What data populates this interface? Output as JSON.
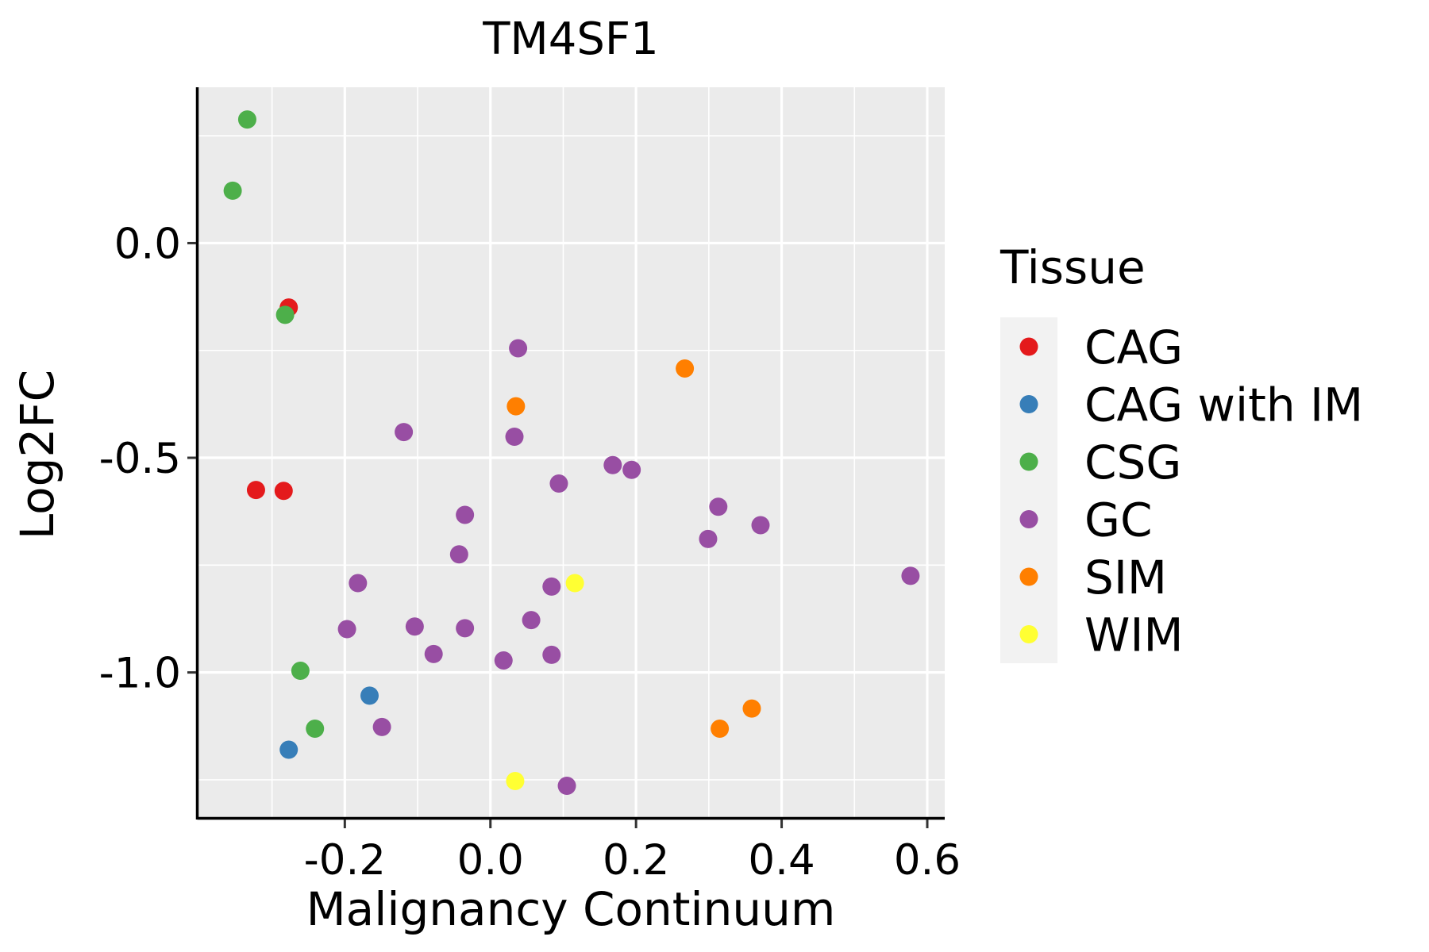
{
  "chart_data": {
    "type": "scatter",
    "title": "TM4SF1",
    "xlabel": "Malignancy Continuum",
    "ylabel": "Log2FC",
    "xlim": [
      -0.401,
      0.624
    ],
    "ylim": [
      -1.337,
      0.363
    ],
    "x_ticks": [
      -0.2,
      0.0,
      0.2,
      0.4,
      0.6
    ],
    "x_tick_labels": [
      "-0.2",
      "0.0",
      "0.2",
      "0.4",
      "0.6"
    ],
    "x_minor": [
      -0.3,
      -0.1,
      0.1,
      0.3,
      0.5
    ],
    "y_ticks": [
      0.0,
      -0.5,
      -1.0
    ],
    "y_tick_labels": [
      "0.0",
      "-0.5",
      "-1.0"
    ],
    "y_minor": [
      0.25,
      -0.25,
      -0.75,
      -1.25
    ],
    "grid": true,
    "legend": {
      "title": "Tissue",
      "position": "right"
    },
    "series": [
      {
        "name": "CAG",
        "color": "#E41A1C",
        "points": [
          [
            -0.277,
            -0.15
          ],
          [
            -0.322,
            -0.575
          ],
          [
            -0.284,
            -0.577
          ]
        ]
      },
      {
        "name": "CAG with IM",
        "color": "#377EB8",
        "points": [
          [
            -0.166,
            -1.054
          ],
          [
            -0.277,
            -1.18
          ]
        ]
      },
      {
        "name": "CSG",
        "color": "#4DAF4A",
        "points": [
          [
            -0.334,
            0.288
          ],
          [
            -0.354,
            0.122
          ],
          [
            -0.282,
            -0.167
          ],
          [
            -0.261,
            -0.996
          ],
          [
            -0.241,
            -1.131
          ]
        ]
      },
      {
        "name": "GC",
        "color": "#984EA3",
        "points": [
          [
            0.038,
            -0.245
          ],
          [
            -0.119,
            -0.44
          ],
          [
            0.033,
            -0.451
          ],
          [
            0.168,
            -0.517
          ],
          [
            0.194,
            -0.528
          ],
          [
            0.094,
            -0.56
          ],
          [
            -0.035,
            -0.633
          ],
          [
            0.313,
            -0.614
          ],
          [
            0.371,
            -0.657
          ],
          [
            0.299,
            -0.689
          ],
          [
            -0.043,
            -0.725
          ],
          [
            0.577,
            -0.775
          ],
          [
            -0.182,
            -0.792
          ],
          [
            0.084,
            -0.8
          ],
          [
            0.056,
            -0.878
          ],
          [
            -0.197,
            -0.899
          ],
          [
            -0.104,
            -0.893
          ],
          [
            -0.035,
            -0.897
          ],
          [
            -0.078,
            -0.957
          ],
          [
            0.018,
            -0.972
          ],
          [
            0.084,
            -0.959
          ],
          [
            -0.149,
            -1.127
          ],
          [
            0.105,
            -1.264
          ]
        ]
      },
      {
        "name": "SIM",
        "color": "#FF7F00",
        "points": [
          [
            0.267,
            -0.292
          ],
          [
            0.035,
            -0.38
          ],
          [
            0.359,
            -1.084
          ],
          [
            0.315,
            -1.131
          ]
        ]
      },
      {
        "name": "WIM",
        "color": "#FFFF33",
        "points": [
          [
            0.116,
            -0.792
          ],
          [
            0.034,
            -1.253
          ]
        ]
      }
    ]
  }
}
